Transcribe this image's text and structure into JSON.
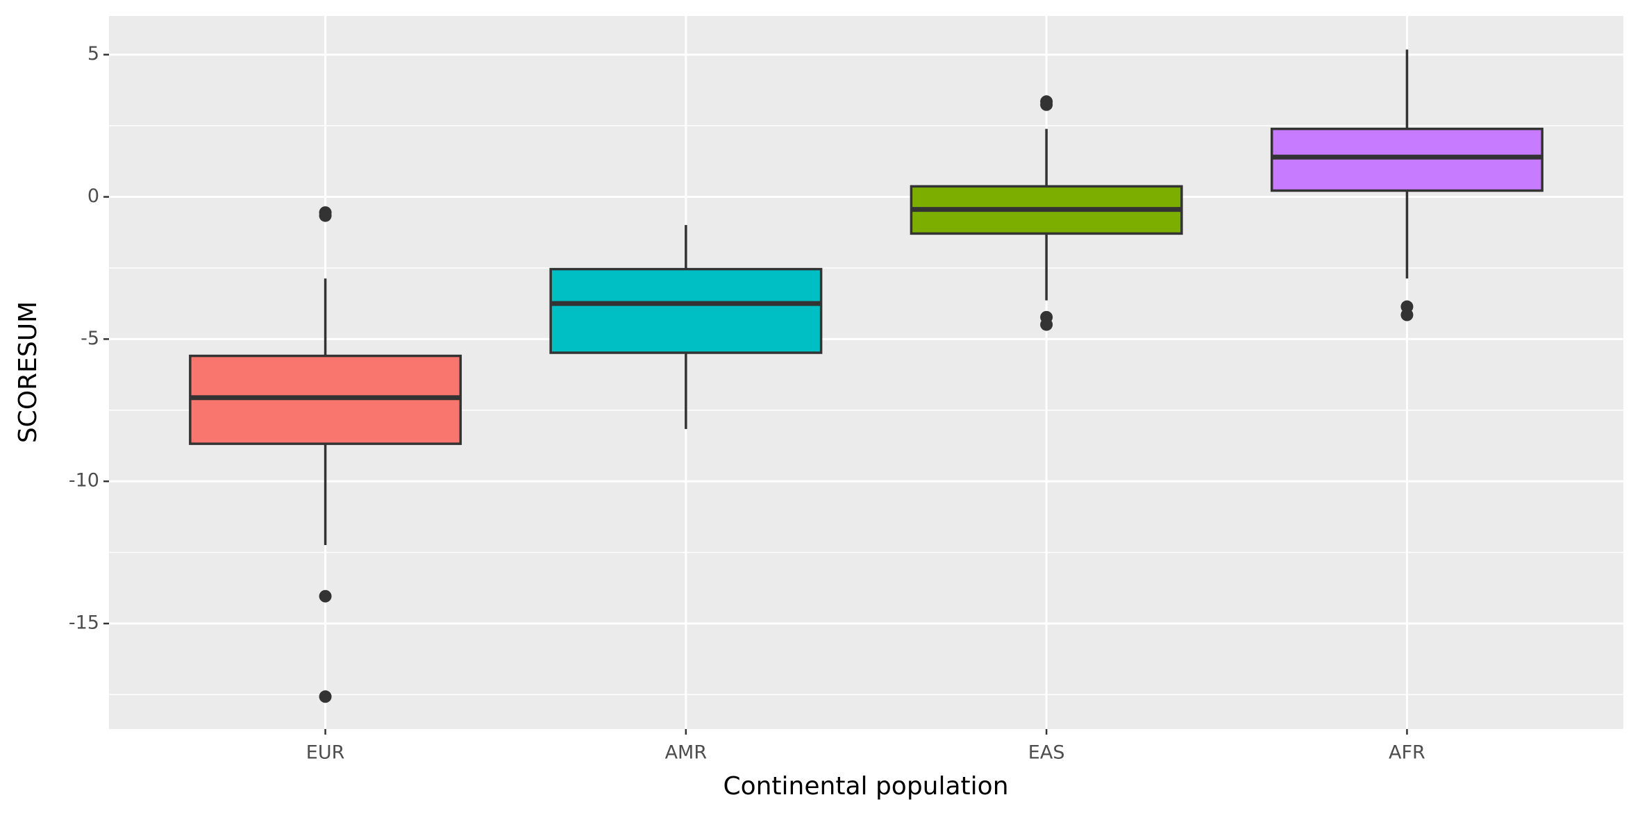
{
  "chart_data": {
    "type": "box",
    "xlabel": "Continental population",
    "ylabel": "SCORESUM",
    "categories": [
      "EUR",
      "AMR",
      "EAS",
      "AFR"
    ],
    "boxes": [
      {
        "whisker_low": -12.24,
        "q1": -8.68,
        "median": -7.06,
        "q3": -5.59,
        "whisker_high": -2.87,
        "outliers": [
          -0.55,
          -0.66,
          -14.04,
          -17.57
        ],
        "color": "#F8766D"
      },
      {
        "whisker_low": -8.16,
        "q1": -5.48,
        "median": -3.75,
        "q3": -2.54,
        "whisker_high": -0.99,
        "outliers": [],
        "color": "#00BFC4"
      },
      {
        "whisker_low": -3.64,
        "q1": -1.29,
        "median": -0.44,
        "q3": 0.37,
        "whisker_high": 2.39,
        "outliers": [
          3.35,
          3.24,
          -4.23,
          -4.49
        ],
        "color": "#7CAE00"
      },
      {
        "whisker_low": -2.87,
        "q1": 0.22,
        "median": 1.4,
        "q3": 2.39,
        "whisker_high": 5.18,
        "outliers": [
          -3.86,
          -4.15
        ],
        "color": "#C77CFF"
      }
    ],
    "ylim": [
      -18.71,
      6.36
    ],
    "yticks": [
      -15,
      -10,
      -5,
      0,
      5
    ],
    "minor_yticks": [
      -17.5,
      -12.5,
      -7.5,
      -2.5,
      2.5
    ],
    "grid": true
  }
}
